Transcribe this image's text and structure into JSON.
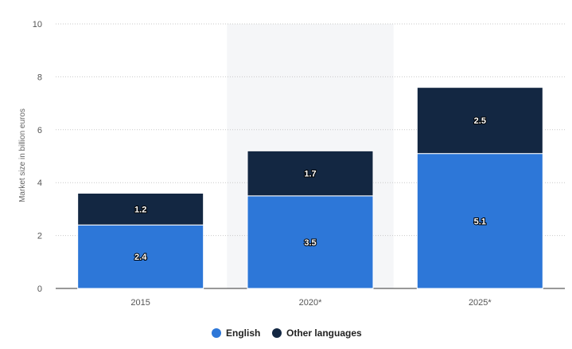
{
  "chart_data": {
    "type": "bar",
    "stacked": true,
    "categories": [
      "2015",
      "2020*",
      "2025*"
    ],
    "series": [
      {
        "name": "English",
        "values": [
          2.4,
          3.5,
          5.1
        ],
        "color": "#2d77d8"
      },
      {
        "name": "Other languages",
        "values": [
          1.2,
          1.7,
          2.5
        ],
        "color": "#132742"
      }
    ],
    "title": "",
    "xlabel": "",
    "ylabel": "Market size in billion euros",
    "ylim": [
      0,
      10
    ],
    "yticks": [
      0,
      2,
      4,
      6,
      8,
      10
    ],
    "grid": true,
    "legend": "bottom-center",
    "highlighted_category": "2020*"
  }
}
